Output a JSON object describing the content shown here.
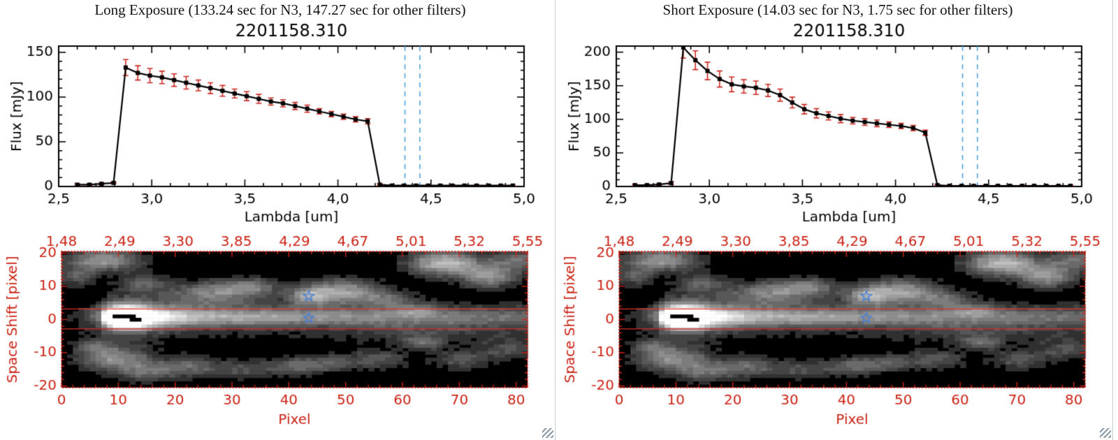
{
  "colors": {
    "axis_black": "#000000",
    "red_axis": "#cc2214",
    "error_red": "#cc2a22",
    "dashed_blue": "#4aa3e0",
    "star_blue": "#4a7fd4",
    "aperture_red": "#e03028"
  },
  "chart_data": [
    {
      "type": "line",
      "exposure": "long",
      "header": "Long Exposure (133.24 sec for N3, 147.27 sec for other filters)",
      "title": "2201158.310",
      "xlabel": "Lambda [um]",
      "ylabel": "Flux [mJy]",
      "xlim": [
        2.5,
        5.0
      ],
      "ylim": [
        0,
        157
      ],
      "xticks": [
        2.5,
        3.0,
        3.5,
        4.0,
        4.5,
        5.0
      ],
      "xtick_labels": [
        "2,5",
        "3,0",
        "3,5",
        "4,0",
        "4,5",
        "5,0"
      ],
      "x_minor_step": 0.1,
      "yticks": [
        0,
        50,
        100,
        150
      ],
      "ytick_labels": [
        "0",
        "50",
        "100",
        "150"
      ],
      "y_minor_step": 10,
      "marker_lines_x": [
        4.36,
        4.44
      ],
      "x": [
        2.6,
        2.665,
        2.73,
        2.795,
        2.86,
        2.925,
        2.99,
        3.055,
        3.12,
        3.185,
        3.25,
        3.315,
        3.38,
        3.445,
        3.51,
        3.575,
        3.64,
        3.705,
        3.77,
        3.835,
        3.9,
        3.965,
        4.03,
        4.095,
        4.16,
        4.225,
        4.29,
        4.355,
        4.42,
        4.485,
        4.55,
        4.615,
        4.68,
        4.745,
        4.81,
        4.875,
        4.94
      ],
      "y": [
        2,
        2,
        3,
        4,
        133,
        127,
        124,
        122,
        119,
        116,
        113,
        110,
        107,
        104,
        101,
        98,
        95,
        93,
        90,
        87,
        84,
        81,
        78,
        75,
        73,
        2,
        1,
        1,
        1,
        1,
        1,
        1,
        1,
        1,
        1,
        1,
        1
      ],
      "yerr": [
        1,
        1,
        1,
        1,
        9,
        8,
        8,
        7,
        7,
        7,
        6,
        6,
        6,
        5,
        5,
        5,
        4,
        4,
        4,
        4,
        3,
        3,
        3,
        3,
        3,
        1,
        1,
        1,
        1,
        1,
        1,
        1,
        1,
        1,
        1,
        1,
        1
      ]
    },
    {
      "type": "line",
      "exposure": "short",
      "header": "Short Exposure (14.03 sec for N3, 1.75 sec for other filters)",
      "title": "2201158.310",
      "xlabel": "Lambda [um]",
      "ylabel": "Flux [mJy]",
      "xlim": [
        2.5,
        5.0
      ],
      "ylim": [
        0,
        209
      ],
      "xticks": [
        2.5,
        3.0,
        3.5,
        4.0,
        4.5,
        5.0
      ],
      "xtick_labels": [
        "2,5",
        "3,0",
        "3,5",
        "4,0",
        "4,5",
        "5,0"
      ],
      "x_minor_step": 0.1,
      "yticks": [
        0,
        50,
        100,
        150,
        200
      ],
      "ytick_labels": [
        "0",
        "50",
        "100",
        "150",
        "200"
      ],
      "y_minor_step": 10,
      "marker_lines_x": [
        4.36,
        4.44
      ],
      "x": [
        2.6,
        2.665,
        2.73,
        2.795,
        2.86,
        2.925,
        2.99,
        3.055,
        3.12,
        3.185,
        3.25,
        3.315,
        3.38,
        3.445,
        3.51,
        3.575,
        3.64,
        3.705,
        3.77,
        3.835,
        3.9,
        3.965,
        4.03,
        4.095,
        4.16,
        4.225,
        4.29,
        4.355,
        4.42,
        4.485,
        4.55,
        4.615,
        4.68,
        4.745,
        4.81,
        4.875,
        4.94
      ],
      "y": [
        2,
        2,
        3,
        5,
        207,
        188,
        172,
        160,
        152,
        149,
        147,
        143,
        136,
        125,
        115,
        109,
        105,
        101,
        98,
        96,
        94,
        92,
        90,
        87,
        80,
        2,
        1,
        1,
        1,
        1,
        1,
        1,
        1,
        1,
        1,
        1,
        1
      ],
      "yerr": [
        1,
        1,
        1,
        2,
        16,
        14,
        13,
        12,
        11,
        10,
        10,
        9,
        9,
        8,
        7,
        7,
        6,
        6,
        5,
        5,
        5,
        4,
        4,
        4,
        4,
        1,
        1,
        1,
        1,
        1,
        1,
        1,
        1,
        1,
        1,
        1,
        1
      ]
    },
    {
      "type": "heatmap",
      "name": "2d-spectral-image",
      "xlabel": "Pixel",
      "ylabel": "Space Shift [pixel]",
      "xlim": [
        0,
        82
      ],
      "ylim": [
        -20.5,
        20.5
      ],
      "xticks": [
        0,
        10,
        20,
        30,
        40,
        50,
        60,
        70,
        80
      ],
      "xtick_labels": [
        "0",
        "10",
        "20",
        "30",
        "40",
        "50",
        "60",
        "70",
        "80"
      ],
      "x_minor_step": 2,
      "yticks": [
        -20,
        -10,
        0,
        10,
        20
      ],
      "ytick_labels": [
        "-20",
        "-10",
        "0",
        "10",
        "20"
      ],
      "y_minor_step": 2,
      "top_axis_labels": [
        "1,48",
        "2,49",
        "3,30",
        "3,85",
        "4,29",
        "4,67",
        "5,01",
        "5,32",
        "5,55"
      ],
      "aperture_lines_y": [
        3.2,
        -2.8
      ],
      "star_markers": [
        [
          43,
          7
        ],
        [
          43,
          0.5
        ]
      ],
      "grid_nx": 82,
      "grid_ny": 41,
      "streak": {
        "x_start": 6.5,
        "y_center": 0.8,
        "sigma": 2.0,
        "halo_sigma_mult": 2.6,
        "halo_amp": 0.28,
        "profile": [
          [
            6,
            0
          ],
          [
            7.5,
            0.5
          ],
          [
            9,
            0.75
          ],
          [
            13,
            0.78
          ],
          [
            16,
            0.6
          ],
          [
            22,
            0.54
          ],
          [
            30,
            0.5
          ],
          [
            40,
            0.44
          ],
          [
            50,
            0.4
          ],
          [
            58,
            0.37
          ],
          [
            66,
            0.34
          ],
          [
            74,
            0.31
          ],
          [
            82,
            0.29
          ]
        ]
      },
      "blobs": [
        [
          11,
          0.8,
          2.2,
          1.6,
          1.45
        ],
        [
          11,
          0.8,
          5.5,
          3.2,
          0.5
        ],
        [
          7,
          18,
          4.5,
          2.5,
          0.55
        ],
        [
          2,
          13,
          2.5,
          2,
          0.28
        ],
        [
          14,
          11,
          3,
          2,
          0.3
        ],
        [
          26,
          8,
          5,
          2.5,
          0.42
        ],
        [
          33,
          10,
          3.5,
          2,
          0.33
        ],
        [
          43,
          7,
          2.6,
          1.8,
          0.45
        ],
        [
          49,
          8.5,
          4.5,
          2.6,
          0.55
        ],
        [
          57,
          6,
          3,
          1.8,
          0.28
        ],
        [
          67,
          17,
          4.5,
          2.6,
          0.7
        ],
        [
          75,
          13,
          3.5,
          2.4,
          0.5
        ],
        [
          80,
          18,
          3,
          2,
          0.4
        ],
        [
          62,
          3,
          2.5,
          1.4,
          0.25
        ],
        [
          9,
          -12,
          4.5,
          2.6,
          0.5
        ],
        [
          15,
          -16,
          3.5,
          2,
          0.33
        ],
        [
          22,
          -14,
          3.5,
          2,
          0.3
        ],
        [
          31,
          -15,
          4.5,
          2,
          0.25
        ],
        [
          41,
          -14,
          3.5,
          2,
          0.3
        ],
        [
          47,
          -13,
          3,
          1.8,
          0.25
        ],
        [
          55,
          -12,
          3.5,
          2,
          0.3
        ],
        [
          63,
          -7,
          2.5,
          1.6,
          0.3
        ],
        [
          70,
          -12,
          3.5,
          2,
          0.3
        ],
        [
          78,
          -9,
          3,
          2,
          0.25
        ],
        [
          5,
          -8,
          2.5,
          1.8,
          0.28
        ],
        [
          66,
          -4,
          13,
          2.2,
          0.13
        ]
      ],
      "masked_cells": [
        [
          9,
          1
        ],
        [
          10,
          1
        ],
        [
          11,
          1
        ],
        [
          12,
          1
        ],
        [
          12,
          0
        ],
        [
          13,
          0
        ]
      ],
      "noise_amp": 0.08,
      "quant_levels": 14,
      "threshold": 0.09
    }
  ]
}
